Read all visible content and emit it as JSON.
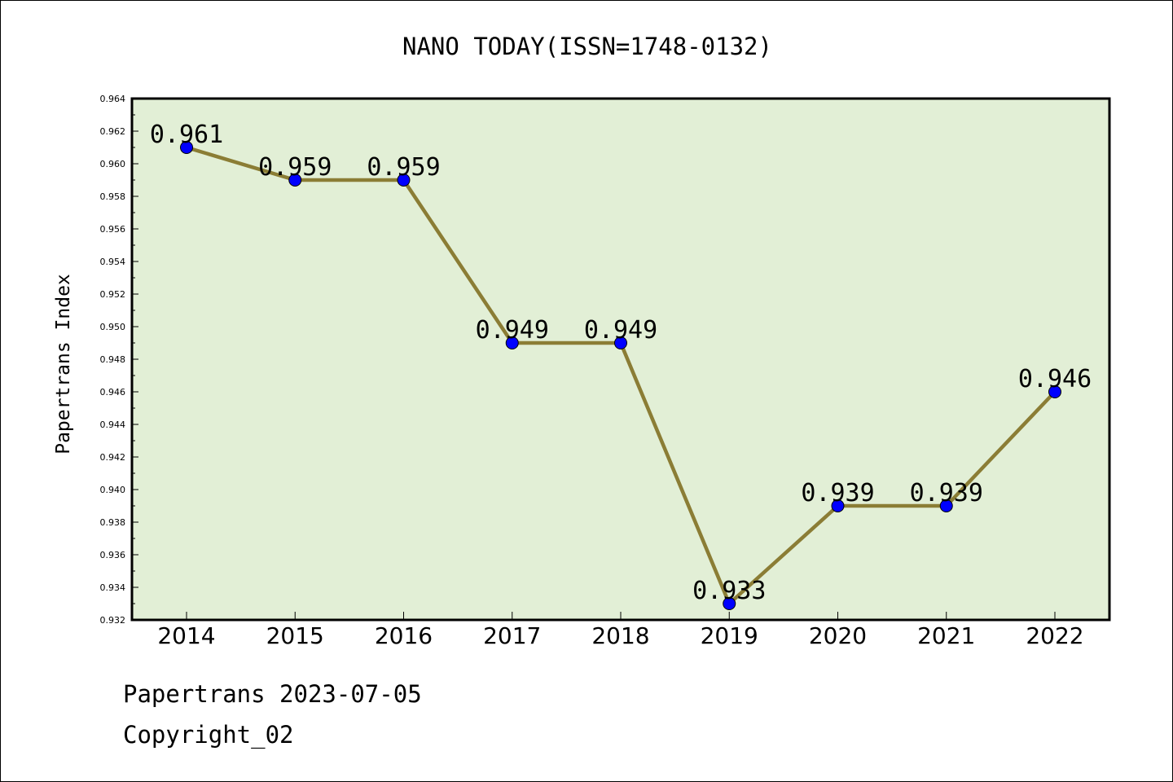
{
  "chart_data": {
    "type": "line",
    "title": "NANO TODAY(ISSN=1748-0132)",
    "xlabel": "",
    "ylabel": "Papertrans Index",
    "categories": [
      "2014",
      "2015",
      "2016",
      "2017",
      "2018",
      "2019",
      "2020",
      "2021",
      "2022"
    ],
    "series": [
      {
        "values": [
          0.961,
          0.959,
          0.959,
          0.949,
          0.949,
          0.933,
          0.939,
          0.939,
          0.946
        ]
      }
    ],
    "data_labels": [
      "0.961",
      "0.959",
      "0.959",
      "0.949",
      "0.949",
      "0.933",
      "0.939",
      "0.939",
      "0.946"
    ],
    "ylim": [
      0.932,
      0.964
    ],
    "yticks": [
      "0.932",
      "0.934",
      "0.936",
      "0.938",
      "0.940",
      "0.942",
      "0.944",
      "0.946",
      "0.948",
      "0.950",
      "0.952",
      "0.954",
      "0.956",
      "0.958",
      "0.960",
      "0.962",
      "0.964"
    ],
    "grid": false,
    "colors": {
      "plot_background": "#e2efd6",
      "line": "#8b7d35",
      "marker": "#0000ff"
    }
  },
  "footer": {
    "line1": "Papertrans 2023-07-05",
    "line2": "Copyright_02"
  }
}
